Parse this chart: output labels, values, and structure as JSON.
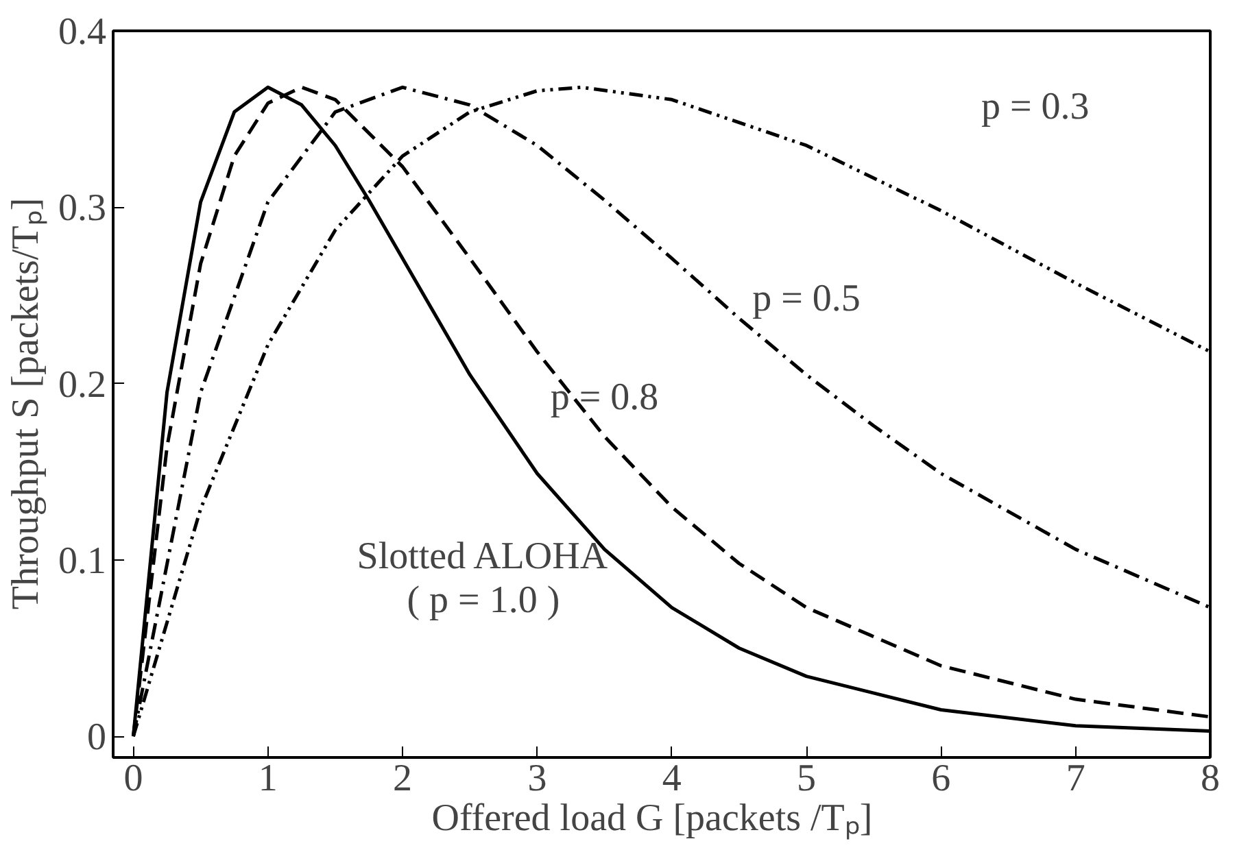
{
  "chart_data": {
    "type": "line",
    "xlabel": "Offered load  G  [packets /Tₚ]",
    "ylabel": "Throughput  S  [packets/Tₚ]",
    "xlim": [
      -0.15,
      8
    ],
    "ylim": [
      -0.012,
      0.4
    ],
    "xticks": [
      0,
      1,
      2,
      3,
      4,
      5,
      6,
      7,
      8
    ],
    "yticks": [
      0,
      0.1,
      0.2,
      0.3,
      0.4
    ],
    "grid": false,
    "marker": "none",
    "series": [
      {
        "name": "Slotted ALOHA\n( p = 1.0 )",
        "color": "#000000",
        "line_style": "solid",
        "x": [
          0,
          0.25,
          0.5,
          0.75,
          1,
          1.25,
          1.5,
          1.75,
          2,
          2.5,
          3,
          3.5,
          4,
          4.5,
          5,
          6,
          7,
          8
        ],
        "values": [
          0,
          0.195,
          0.303,
          0.354,
          0.368,
          0.358,
          0.335,
          0.304,
          0.271,
          0.205,
          0.149,
          0.106,
          0.073,
          0.05,
          0.034,
          0.015,
          0.006,
          0.003
        ]
      },
      {
        "name": "p = 0.8",
        "color": "#000000",
        "line_style": "dashed",
        "x": [
          0,
          0.25,
          0.5,
          0.75,
          1,
          1.25,
          1.5,
          2,
          2.5,
          3,
          3.5,
          4,
          4.5,
          5,
          6,
          7,
          8
        ],
        "values": [
          0,
          0.164,
          0.268,
          0.329,
          0.359,
          0.368,
          0.361,
          0.323,
          0.271,
          0.218,
          0.17,
          0.13,
          0.098,
          0.073,
          0.04,
          0.021,
          0.011
        ]
      },
      {
        "name": "p = 0.5",
        "color": "#000000",
        "line_style": "dashdot",
        "x": [
          0,
          0.5,
          1,
          1.5,
          2,
          2.5,
          3,
          3.5,
          4,
          4.5,
          5,
          5.5,
          6,
          7,
          8
        ],
        "values": [
          0,
          0.195,
          0.303,
          0.354,
          0.368,
          0.358,
          0.335,
          0.304,
          0.271,
          0.237,
          0.205,
          0.176,
          0.149,
          0.106,
          0.073
        ]
      },
      {
        "name": "p = 0.3",
        "color": "#000000",
        "line_style": "dashdotdot",
        "x": [
          0,
          0.5,
          1,
          1.5,
          2,
          2.5,
          3,
          3.33,
          4,
          5,
          6,
          7,
          8
        ],
        "values": [
          0,
          0.129,
          0.222,
          0.287,
          0.329,
          0.354,
          0.366,
          0.368,
          0.361,
          0.335,
          0.298,
          0.257,
          0.218
        ]
      }
    ]
  }
}
